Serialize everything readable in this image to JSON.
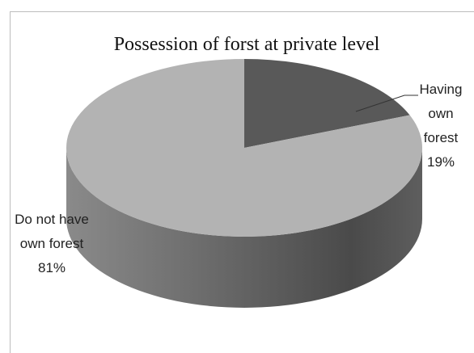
{
  "chart_data": {
    "type": "pie",
    "title": "Possession of forst at private level",
    "categories": [
      "Having own forest",
      "Do not have own forest"
    ],
    "values": [
      19,
      81
    ],
    "value_labels": [
      "19%",
      "81%"
    ],
    "colors": [
      "#595959",
      "#b3b3b3"
    ]
  }
}
